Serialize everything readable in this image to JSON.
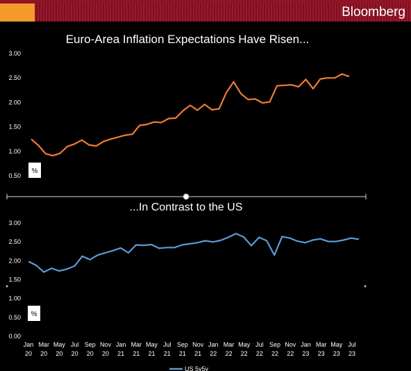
{
  "header": {
    "brand": "Bloomberg"
  },
  "colors": {
    "background": "#000000",
    "header_bar": "#8f1424",
    "accent": "#f39a2a",
    "euro_line": "#ef7d32",
    "us_line": "#5b9bd5"
  },
  "chart_data": [
    {
      "type": "line",
      "title": "Euro-Area Inflation Expectations Have Risen...",
      "ylabel": "%",
      "ylim": [
        0.5,
        3.0
      ],
      "yticks": [
        "0.50",
        "1.00",
        "1.50",
        "2.00",
        "2.50",
        "3.00"
      ],
      "grid": false,
      "series": [
        {
          "name": "",
          "values": [
            1.25,
            1.12,
            0.95,
            0.91,
            0.96,
            1.1,
            1.15,
            1.23,
            1.13,
            1.11,
            1.2,
            1.25,
            1.29,
            1.33,
            1.35,
            1.53,
            1.55,
            1.6,
            1.59,
            1.67,
            1.68,
            1.83,
            1.94,
            1.84,
            1.96,
            1.85,
            1.87,
            2.2,
            2.42,
            2.18,
            2.06,
            2.07,
            1.99,
            2.01,
            2.34,
            2.35,
            2.36,
            2.32,
            2.47,
            2.28,
            2.48,
            2.5,
            2.5,
            2.58,
            2.53
          ]
        }
      ]
    },
    {
      "type": "line",
      "title": "...In Contrast to the US",
      "ylabel": "%",
      "ylim": [
        0,
        3.0
      ],
      "yticks": [
        "0.00",
        "0.50",
        "1.00",
        "1.50",
        "2.00",
        "2.50",
        "3.00"
      ],
      "xticks": [
        "Jan\n20",
        "Mar\n20",
        "May\n20",
        "Jul\n20",
        "Sep\n20",
        "Nov\n20",
        "Jan\n21",
        "Mar\n21",
        "May\n21",
        "Jul\n21",
        "Sep\n21",
        "Nov\n21",
        "Jan\n22",
        "Mar\n22",
        "May\n22",
        "Jul\n22",
        "Sep\n22",
        "Nov\n22",
        "Jan\n23",
        "Mar\n23",
        "May\n23",
        "Jul\n23"
      ],
      "legend": "bottom-center",
      "grid": false,
      "series": [
        {
          "name": "US 5y5y",
          "values": [
            1.98,
            1.88,
            1.7,
            1.8,
            1.73,
            1.78,
            1.86,
            2.12,
            2.03,
            2.15,
            2.21,
            2.27,
            2.34,
            2.21,
            2.42,
            2.41,
            2.43,
            2.33,
            2.35,
            2.35,
            2.42,
            2.45,
            2.48,
            2.53,
            2.5,
            2.54,
            2.62,
            2.72,
            2.63,
            2.4,
            2.62,
            2.53,
            2.15,
            2.64,
            2.6,
            2.52,
            2.48,
            2.55,
            2.58,
            2.51,
            2.51,
            2.55,
            2.6,
            2.57
          ]
        }
      ]
    }
  ]
}
